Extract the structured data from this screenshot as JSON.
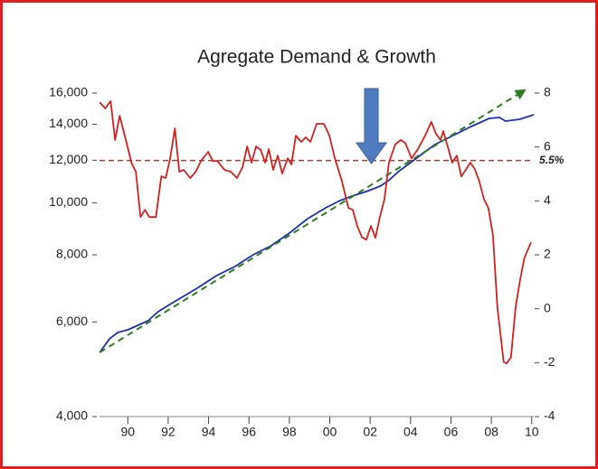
{
  "chart_data": {
    "type": "line",
    "title": "Agregate Demand & Growth",
    "xlim": [
      1988.6,
      2010.1
    ],
    "xticks": [
      {
        "value": 1990,
        "label": "90"
      },
      {
        "value": 1992,
        "label": "92"
      },
      {
        "value": 1994,
        "label": "94"
      },
      {
        "value": 1996,
        "label": "96"
      },
      {
        "value": 1998,
        "label": "98"
      },
      {
        "value": 2000,
        "label": "00"
      },
      {
        "value": 2002,
        "label": "02"
      },
      {
        "value": 2004,
        "label": "04"
      },
      {
        "value": 2006,
        "label": "06"
      },
      {
        "value": 2008,
        "label": "08"
      },
      {
        "value": 2010,
        "label": "10"
      }
    ],
    "ylim": [
      4000,
      16000
    ],
    "ylog": true,
    "yticks": [
      {
        "value": 4000,
        "label": "4,000"
      },
      {
        "value": 6000,
        "label": "6,000"
      },
      {
        "value": 8000,
        "label": "8,000"
      },
      {
        "value": 10000,
        "label": "10,000"
      },
      {
        "value": 12000,
        "label": "12,000"
      },
      {
        "value": 14000,
        "label": "14,000"
      },
      {
        "value": 16000,
        "label": "16,000"
      }
    ],
    "y2lim": [
      -4,
      8
    ],
    "y2ticks": [
      -4,
      -2,
      0,
      2,
      4,
      6,
      8
    ],
    "series": [
      {
        "color": "#1f2fb0",
        "dashed": false,
        "x": [
          1988.61,
          1989.1,
          1989.5,
          1990,
          1990.5,
          1991,
          1991.5,
          1992,
          1992.6,
          1993.5,
          1994.4,
          1995.3,
          1996.2,
          1997.1,
          1998,
          1998.9,
          1999.8,
          2000.5,
          2001.1,
          2001.8,
          2002.5,
          2002.9,
          2003.4,
          2004.3,
          2005.2,
          2006.1,
          2007,
          2007.9,
          2008.4,
          2008.7,
          2009.4,
          2010.1
        ],
        "values": [
          5265,
          5584,
          5736,
          5802,
          5915,
          6031,
          6269,
          6440,
          6643,
          6960,
          7320,
          7608,
          8000,
          8320,
          8781,
          9341,
          9786,
          10093,
          10290,
          10491,
          10738,
          10990,
          11426,
          12107,
          12832,
          13338,
          13864,
          14357,
          14413,
          14192,
          14300,
          14581
        ]
      },
      {
        "color": "#2e7d1f",
        "dashed": true,
        "arrow": true,
        "x": [
          1988.61,
          2009.64
        ],
        "values": [
          5265,
          16190
        ]
      },
      {
        "color": "#d42020",
        "dashed": false,
        "axis": "y2",
        "x": [
          1988.61,
          1988.88,
          1989.15,
          1989.37,
          1989.6,
          1989.96,
          1990.18,
          1990.4,
          1990.63,
          1990.85,
          1991.07,
          1991.39,
          1991.66,
          1991.88,
          1992.1,
          1992.33,
          1992.55,
          1992.77,
          1993.09,
          1993.36,
          1993.62,
          1993.98,
          1994.21,
          1994.43,
          1994.79,
          1995.1,
          1995.41,
          1995.68,
          1995.91,
          1996.13,
          1996.35,
          1996.58,
          1996.8,
          1996.98,
          1997.2,
          1997.43,
          1997.65,
          1997.92,
          1998.1,
          1998.32,
          1998.59,
          1998.81,
          1999.04,
          1999.35,
          1999.71,
          1999.98,
          2000.25,
          2000.6,
          2000.92,
          2001.14,
          2001.36,
          2001.59,
          2001.81,
          2002.04,
          2002.26,
          2002.48,
          2002.71,
          2002.93,
          2003.24,
          2003.51,
          2003.74,
          2004.05,
          2004.36,
          2004.72,
          2005.03,
          2005.26,
          2005.48,
          2005.62,
          2005.84,
          2006.06,
          2006.29,
          2006.51,
          2006.73,
          2006.96,
          2007.18,
          2007.4,
          2007.63,
          2007.85,
          2008.08,
          2008.3,
          2008.61,
          2008.75,
          2008.97,
          2009.2,
          2009.42,
          2009.64,
          2009.96
        ],
        "values": [
          7.66,
          7.43,
          7.7,
          6.26,
          7.16,
          6.09,
          5.42,
          5.08,
          3.4,
          3.67,
          3.4,
          3.4,
          4.91,
          4.85,
          5.58,
          6.69,
          5.08,
          5.15,
          4.85,
          5.08,
          5.48,
          5.82,
          5.48,
          5.48,
          5.15,
          5.08,
          4.85,
          5.25,
          6.02,
          5.42,
          6.02,
          5.89,
          5.42,
          5.92,
          5.15,
          5.68,
          5.01,
          5.58,
          5.35,
          6.42,
          6.19,
          6.36,
          6.19,
          6.86,
          6.86,
          6.42,
          5.58,
          4.74,
          3.74,
          3.67,
          3.07,
          2.66,
          2.56,
          3.07,
          2.63,
          3.4,
          4.07,
          5.42,
          6.09,
          6.26,
          6.15,
          5.58,
          5.92,
          6.42,
          6.93,
          6.49,
          6.26,
          6.59,
          6.02,
          5.42,
          5.68,
          4.91,
          5.15,
          5.42,
          5.18,
          4.74,
          4.07,
          3.74,
          2.73,
          0.05,
          -1.97,
          -2.03,
          -1.8,
          0.05,
          1.05,
          1.89,
          2.46
        ]
      }
    ],
    "reference_lines": [
      {
        "value": 5.5,
        "axis": "y2",
        "color": "#a0413a",
        "label": "5.5%"
      }
    ]
  }
}
